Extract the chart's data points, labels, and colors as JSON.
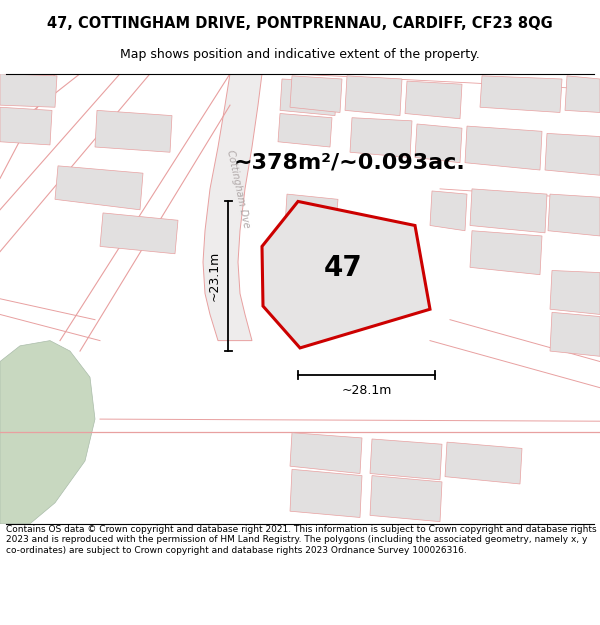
{
  "title_line1": "47, COTTINGHAM DRIVE, PONTPRENNAU, CARDIFF, CF23 8QG",
  "title_line2": "Map shows position and indicative extent of the property.",
  "footer": "Contains OS data © Crown copyright and database right 2021. This information is subject to Crown copyright and database rights 2023 and is reproduced with the permission of HM Land Registry. The polygons (including the associated geometry, namely x, y co-ordinates) are subject to Crown copyright and database rights 2023 Ordnance Survey 100026316.",
  "area_text": "~378m²/~0.093ac.",
  "dim_vertical": "~23.1m",
  "dim_horizontal": "~28.1m",
  "property_number": "47",
  "road_label": "Cottingham Dve",
  "map_bg": "#f2f0f0",
  "street_color": "#e8a0a0",
  "property_fill": "#e8e6e6",
  "property_edge": "#cc0000",
  "green_color": "#c8d8c0",
  "building_fill": "#e2e0e0",
  "title_fontsize": 10.5,
  "subtitle_fontsize": 9,
  "footer_fontsize": 6.5,
  "area_fontsize": 16,
  "property_num_fontsize": 20,
  "dim_fontsize": 9
}
